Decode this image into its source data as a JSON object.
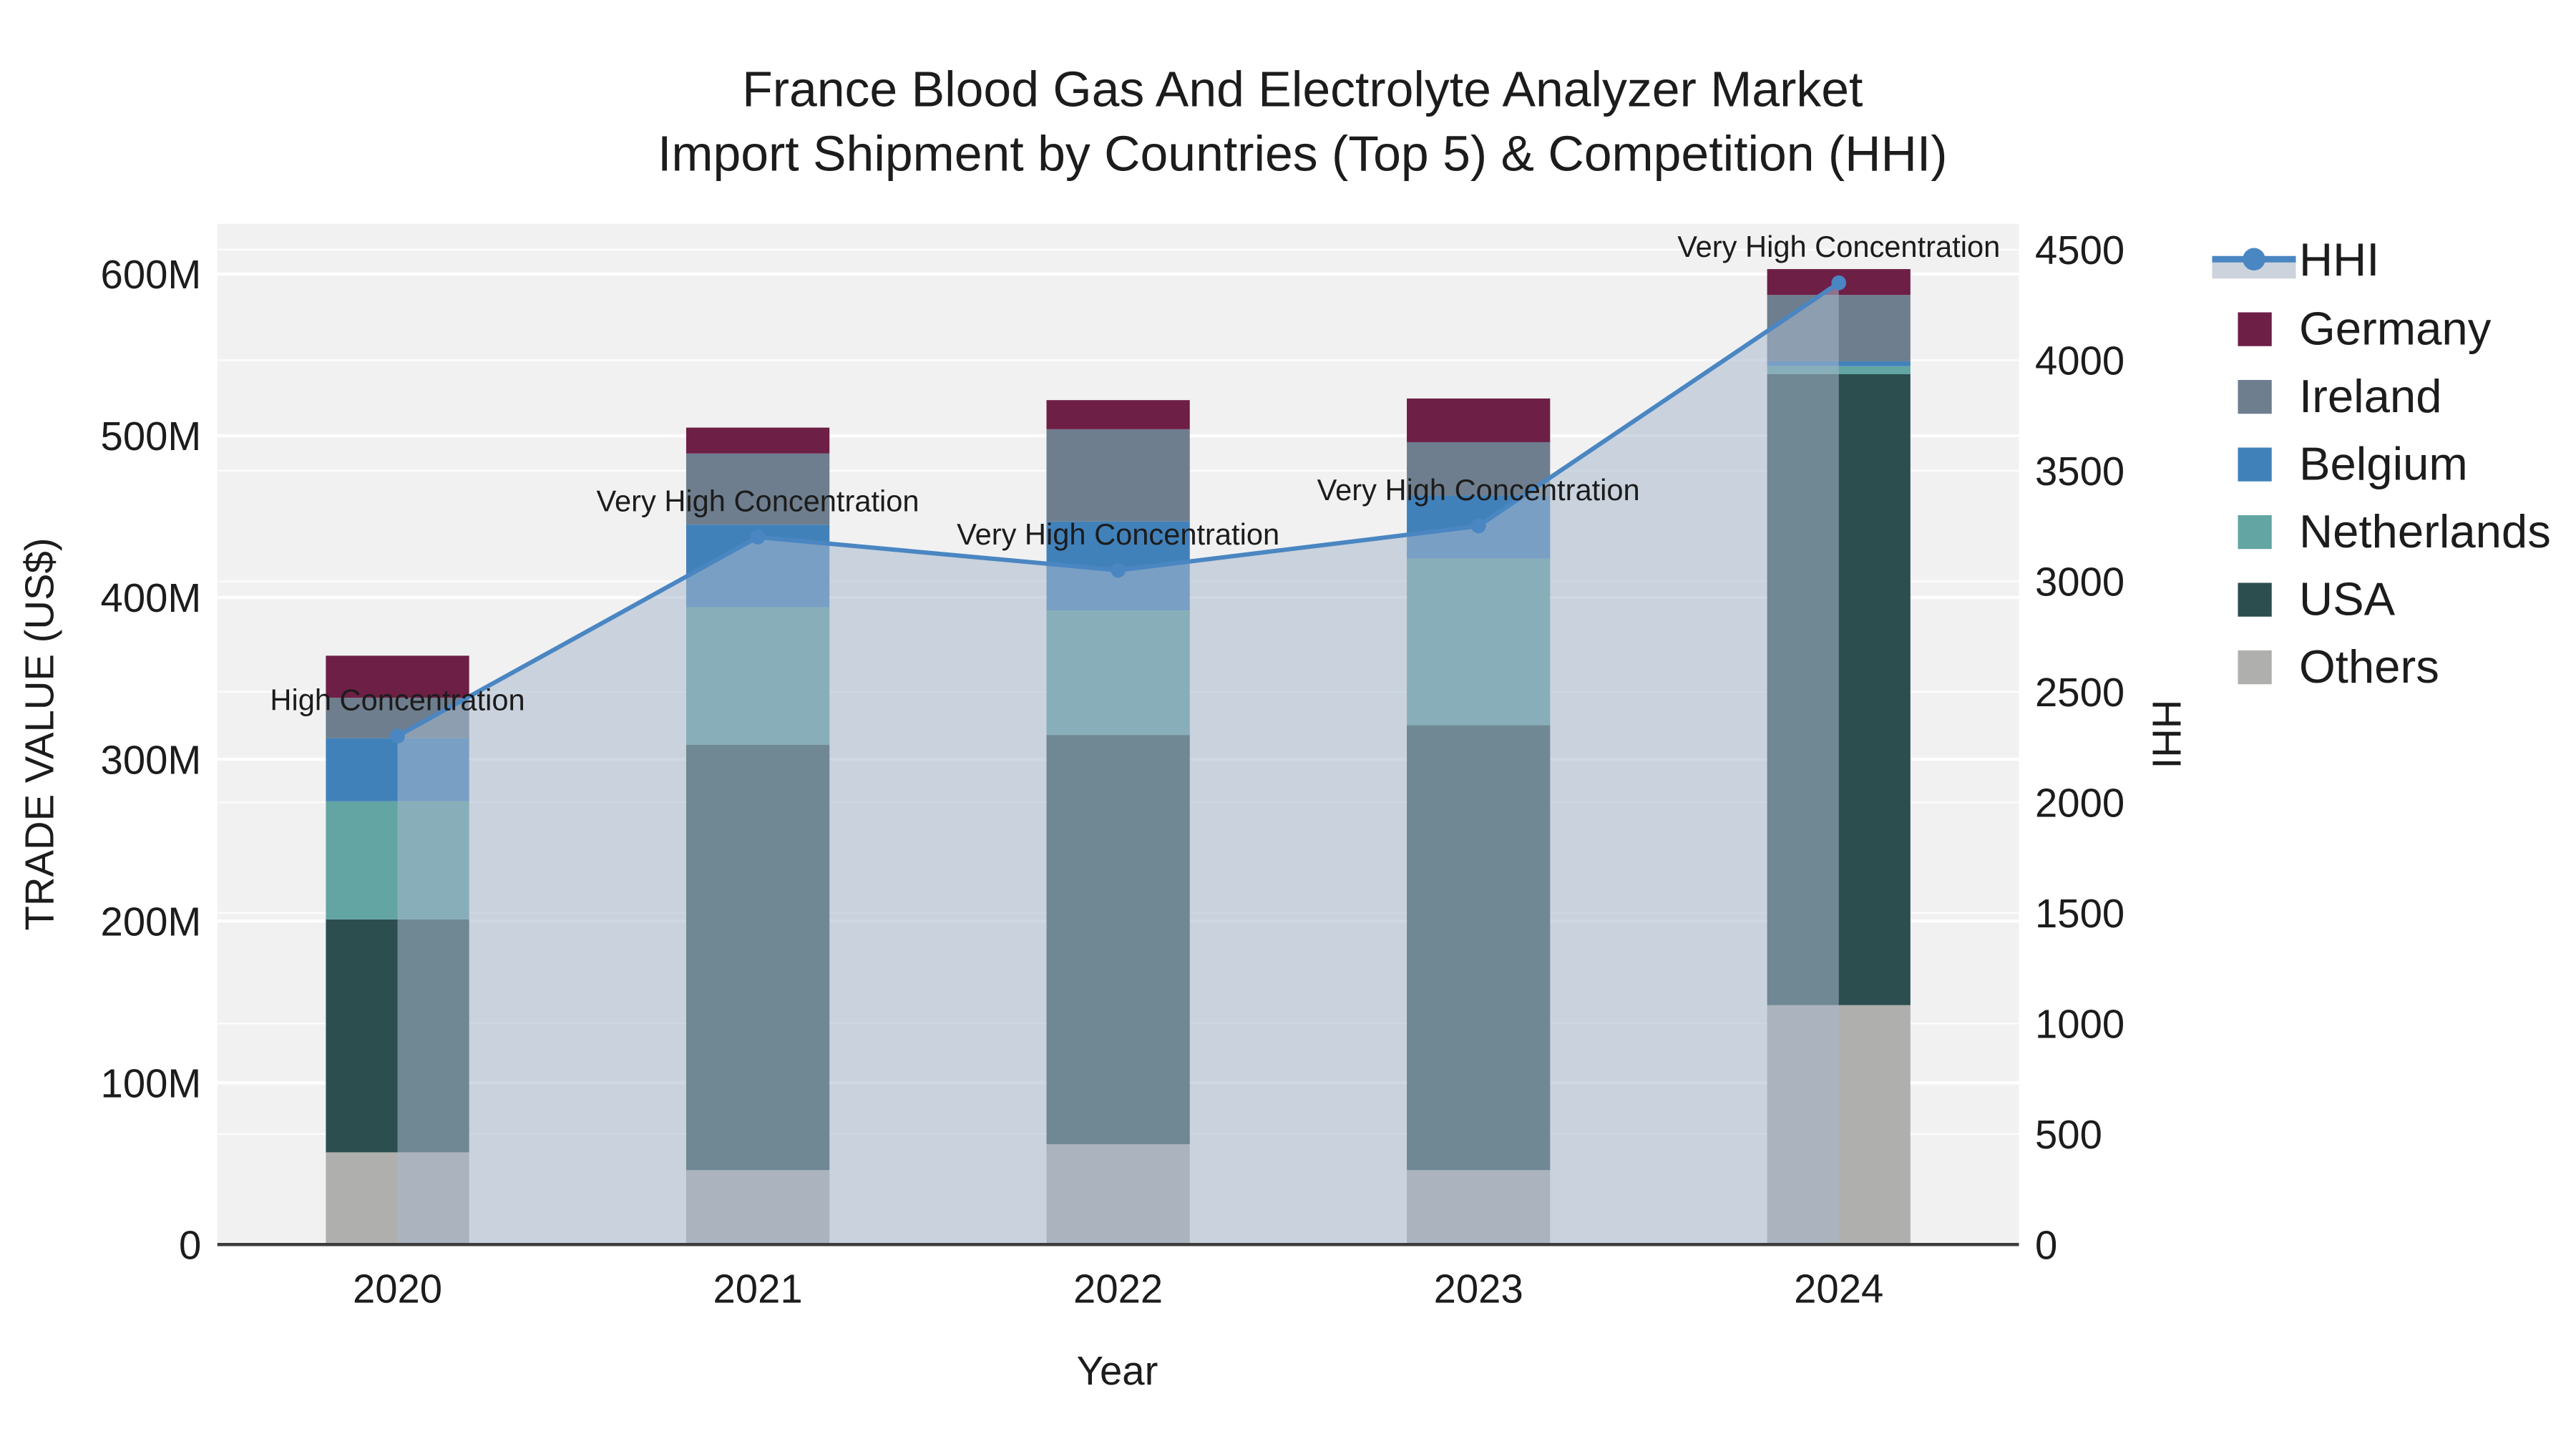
{
  "title": {
    "line1": "France Blood Gas And Electrolyte Analyzer Market",
    "line2": "Import Shipment by Countries (Top 5) & Competition (HHI)"
  },
  "axes": {
    "x": {
      "title": "Year"
    },
    "y_left": {
      "title": "TRADE VALUE (US$)"
    },
    "y_right": {
      "title": "HHI"
    }
  },
  "colors": {
    "plot_background": "#F1F1F2",
    "gridline": "#FFFFFF",
    "axis_line": "#3C3C3C",
    "hhi_line": "#4A86C2",
    "hhi_area_fill": "rgba(168,184,204,0.55)",
    "germany": "#6E1F46",
    "ireland": "#6E7E8E",
    "belgium": "#4181BA",
    "netherlands": "#62A5A3",
    "usa": "#2C4E4F",
    "others": "#AFAFAD"
  },
  "legend": [
    {
      "label": "HHI",
      "type": "line",
      "color": "#4A86C2",
      "band": "#CCD3DC"
    },
    {
      "label": "Germany",
      "type": "swatch",
      "color": "#6E1F46"
    },
    {
      "label": "Ireland",
      "type": "swatch",
      "color": "#6E7E8E"
    },
    {
      "label": "Belgium",
      "type": "swatch",
      "color": "#4181BA"
    },
    {
      "label": "Netherlands",
      "type": "swatch",
      "color": "#62A5A3"
    },
    {
      "label": "USA",
      "type": "swatch",
      "color": "#2C4E4F"
    },
    {
      "label": "Others",
      "type": "swatch",
      "color": "#AFAFAD"
    }
  ],
  "chart_data": {
    "type": "bar+line",
    "title": "France Blood Gas And Electrolyte Analyzer Market Import Shipment by Countries (Top 5) & Competition (HHI)",
    "categories": [
      "2020",
      "2021",
      "2022",
      "2023",
      "2024"
    ],
    "bar_value_unit": "million US$",
    "stack_order_bottom_to_top": [
      "Others",
      "USA",
      "Netherlands",
      "Belgium",
      "Ireland",
      "Germany"
    ],
    "series": [
      {
        "name": "Others",
        "color": "#AFAFAD",
        "values": [
          57,
          46,
          62,
          46,
          148
        ]
      },
      {
        "name": "USA",
        "color": "#2C4E4F",
        "values": [
          144,
          263,
          253,
          275,
          390
        ]
      },
      {
        "name": "Netherlands",
        "color": "#62A5A3",
        "values": [
          73,
          85,
          77,
          103,
          5
        ]
      },
      {
        "name": "Belgium",
        "color": "#4181BA",
        "values": [
          39,
          51,
          55,
          39,
          3
        ]
      },
      {
        "name": "Ireland",
        "color": "#6E7E8E",
        "values": [
          25,
          44,
          57,
          33,
          41
        ]
      },
      {
        "name": "Germany",
        "color": "#6E1F46",
        "values": [
          26,
          16,
          18,
          27,
          16
        ]
      }
    ],
    "bar_totals": [
      364,
      505,
      522,
      523,
      603
    ],
    "line_series": {
      "name": "HHI",
      "values": [
        2300,
        3200,
        3050,
        3250,
        4350
      ],
      "point_labels": [
        "High Concentration",
        "Very High Concentration",
        "Very High Concentration",
        "Very High Concentration",
        "Very High Concentration"
      ]
    },
    "xlabel": "Year",
    "ylabel_left": "TRADE VALUE (US$)",
    "ylabel_right": "HHI",
    "y_left_ticks": {
      "values": [
        0,
        100,
        200,
        300,
        400,
        500,
        600
      ],
      "labels": [
        "0",
        "100M",
        "200M",
        "300M",
        "400M",
        "500M",
        "600M"
      ]
    },
    "y_right_ticks": {
      "values": [
        0,
        500,
        1000,
        1500,
        2000,
        2500,
        3000,
        3500,
        4000,
        4500
      ],
      "labels": [
        "0",
        "500",
        "1000",
        "1500",
        "2000",
        "2500",
        "3000",
        "3500",
        "4000",
        "4500"
      ]
    },
    "ylim_left": [
      0,
      631
    ],
    "ylim_right": [
      0,
      4617
    ],
    "grid": true,
    "legend_position": "right"
  }
}
